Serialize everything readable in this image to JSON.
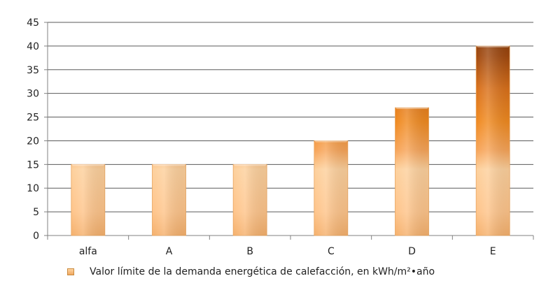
{
  "chart_data": {
    "type": "bar",
    "categories": [
      "alfa",
      "A",
      "B",
      "C",
      "D",
      "E"
    ],
    "values": [
      15,
      15,
      15,
      20,
      27,
      40
    ],
    "series": [
      {
        "name": "Valor límite de la demanda energética de calefacción, en kWh/m²•año",
        "values": [
          15,
          15,
          15,
          20,
          27,
          40
        ]
      }
    ],
    "title": "",
    "xlabel": "",
    "ylabel": "",
    "ylim": [
      0,
      45
    ],
    "yticks": [
      0,
      5,
      10,
      15,
      20,
      25,
      30,
      35,
      40,
      45
    ],
    "grid": true,
    "legend_position": "bottom-left",
    "colors": {
      "bar_light": "#fdd09c",
      "bar_mid": "#f08a20",
      "bar_dark": "#a0480e",
      "gridline": "#5a5a5a",
      "axis": "#808080"
    }
  }
}
